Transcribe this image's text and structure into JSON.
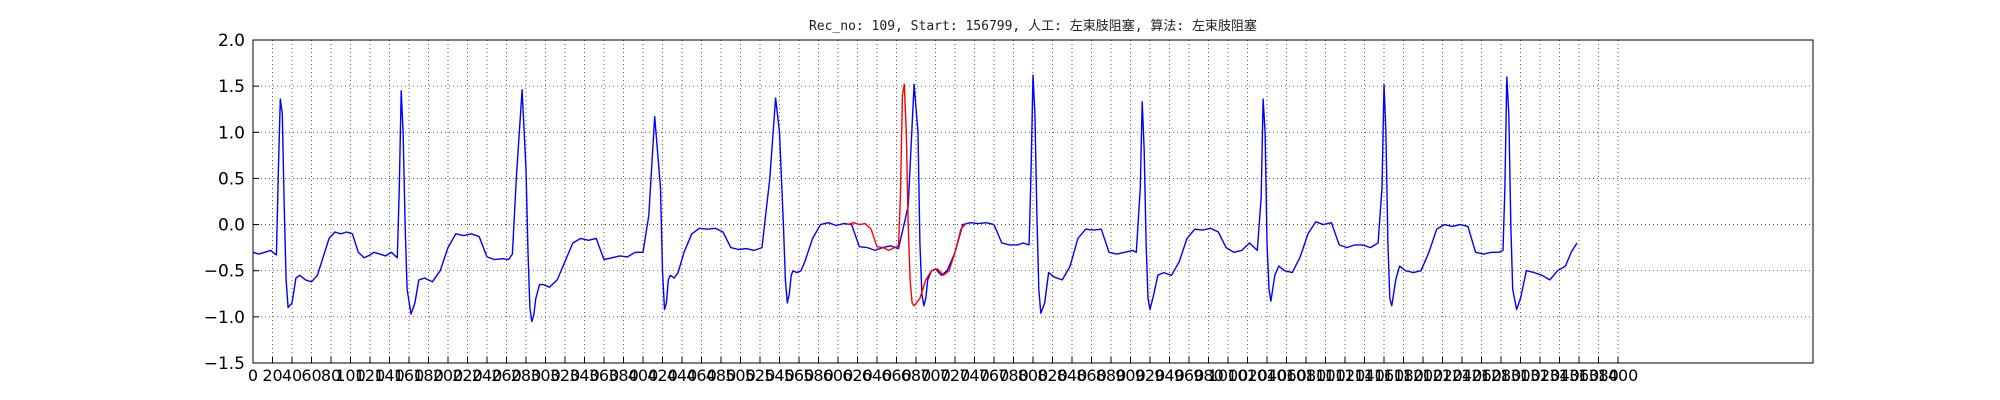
{
  "chart_data": {
    "type": "line",
    "title": "Rec_no: 109, Start: 156799, 人工: 左束肢阻塞, 算法: 左束肢阻塞",
    "xlabel": "",
    "ylabel": "",
    "xlim": [
      0,
      1600
    ],
    "ylim": [
      -1.5,
      2.0
    ],
    "grid": true,
    "yticks": [
      -1.5,
      -1.0,
      -0.5,
      0.0,
      0.5,
      1.0,
      1.5,
      2.0
    ],
    "ytick_labels": [
      "−1.5",
      "−1.0",
      "−0.5",
      "0.0",
      "0.5",
      "1.0",
      "1.5",
      "2.0"
    ],
    "xticks": [
      0,
      20,
      40,
      60,
      80,
      100,
      120,
      140,
      160,
      180,
      200,
      220,
      240,
      260,
      280,
      300,
      320,
      340,
      360,
      380,
      400,
      420,
      440,
      460,
      480,
      500,
      520,
      540,
      560,
      580,
      600,
      620,
      640,
      660,
      680,
      700,
      720,
      740,
      760,
      780,
      800,
      820,
      840,
      860,
      880,
      900,
      920,
      940,
      960,
      980,
      1000,
      1020,
      1040,
      1060,
      1080,
      1100,
      1120,
      1140,
      1160,
      1180,
      1200,
      1220,
      1240,
      1260,
      1280,
      1300,
      1320,
      1340,
      1360,
      1380,
      1400
    ],
    "series": [
      {
        "color": "#0000ff",
        "x": [
          0,
          6,
          12,
          18,
          24,
          26,
          28,
          30,
          32,
          34,
          36,
          40,
          44,
          48,
          54,
          60,
          66,
          72,
          78,
          84,
          90,
          96,
          102,
          108,
          114,
          120,
          124,
          130,
          136,
          142,
          148,
          150,
          152,
          154,
          156,
          158,
          162,
          166,
          170,
          176,
          184,
          192,
          200,
          208,
          216,
          224,
          232,
          240,
          248,
          256,
          262,
          266,
          270,
          276,
          280,
          282,
          284,
          286,
          288,
          290,
          294,
          298,
          304,
          312,
          320,
          328,
          336,
          344,
          352,
          360,
          368,
          376,
          384,
          392,
          400,
          406,
          412,
          418,
          420,
          422,
          424,
          426,
          428,
          432,
          436,
          442,
          450,
          458,
          466,
          474,
          482,
          490,
          498,
          506,
          514,
          522,
          530,
          536,
          540,
          544,
          546,
          548,
          550,
          552,
          554,
          558,
          562,
          566,
          574,
          582,
          590,
          598,
          606,
          614,
          622,
          630,
          638,
          646,
          654,
          662,
          672,
          678,
          682,
          684,
          686,
          688,
          690,
          692,
          696,
          700,
          706,
          712,
          720,
          728,
          736,
          744,
          752,
          760,
          768,
          776,
          784,
          790,
          796
        ],
        "y": [
          -0.3,
          -0.32,
          -0.3,
          -0.28,
          -0.33,
          0.6,
          1.36,
          1.2,
          0.2,
          -0.6,
          -0.9,
          -0.85,
          -0.58,
          -0.55,
          -0.6,
          -0.62,
          -0.55,
          -0.35,
          -0.15,
          -0.08,
          -0.1,
          -0.08,
          -0.1,
          -0.3,
          -0.36,
          -0.33,
          -0.3,
          -0.32,
          -0.34,
          -0.3,
          -0.36,
          0.4,
          1.45,
          1.0,
          0.0,
          -0.7,
          -0.97,
          -0.85,
          -0.6,
          -0.58,
          -0.62,
          -0.5,
          -0.25,
          -0.1,
          -0.12,
          -0.1,
          -0.13,
          -0.35,
          -0.38,
          -0.37,
          -0.38,
          -0.32,
          0.5,
          1.46,
          0.6,
          -0.3,
          -0.9,
          -1.05,
          -0.98,
          -0.8,
          -0.65,
          -0.65,
          -0.68,
          -0.6,
          -0.4,
          -0.2,
          -0.15,
          -0.17,
          -0.15,
          -0.38,
          -0.36,
          -0.34,
          -0.35,
          -0.3,
          -0.3,
          0.1,
          1.17,
          0.4,
          -0.5,
          -0.92,
          -0.85,
          -0.6,
          -0.55,
          -0.58,
          -0.52,
          -0.3,
          -0.1,
          -0.04,
          -0.05,
          -0.04,
          -0.08,
          -0.25,
          -0.27,
          -0.26,
          -0.28,
          -0.25,
          0.5,
          1.37,
          1.0,
          0.0,
          -0.6,
          -0.85,
          -0.75,
          -0.55,
          -0.5,
          -0.52,
          -0.5,
          -0.4,
          -0.15,
          0.0,
          0.02,
          -0.01,
          0.01,
          0.0,
          -0.24,
          -0.25,
          -0.28,
          -0.25,
          -0.23,
          -0.26,
          0.2,
          1.52,
          1.0,
          -0.2,
          -0.75,
          -0.88,
          -0.8,
          -0.6,
          -0.5,
          -0.48,
          -0.55,
          -0.5,
          -0.3,
          0.0,
          0.02,
          0.01,
          0.02,
          0.0,
          -0.2,
          -0.22,
          -0.22,
          -0.2,
          -0.22
        ]
      },
      {
        "color": "#0000ff",
        "x": [
          796,
          798,
          800,
          802,
          804,
          806,
          808,
          812,
          816,
          822,
          830,
          838,
          846,
          854,
          862,
          870,
          878,
          886,
          894,
          902,
          906,
          910,
          912,
          914,
          916,
          918,
          920,
          924,
          928,
          934,
          942,
          950,
          958,
          966,
          974,
          982,
          990,
          998,
          1006,
          1014,
          1022,
          1030,
          1034,
          1036,
          1038,
          1040,
          1042,
          1044,
          1048,
          1052,
          1058,
          1066,
          1074,
          1082,
          1090,
          1098,
          1106,
          1114,
          1122,
          1130,
          1138,
          1146,
          1154,
          1158,
          1160,
          1162,
          1164,
          1166,
          1168,
          1172,
          1176,
          1182,
          1190,
          1198,
          1206,
          1214,
          1222,
          1230,
          1238,
          1246,
          1254,
          1262,
          1270,
          1278,
          1282,
          1284,
          1286,
          1288,
          1290,
          1292,
          1296,
          1300,
          1306,
          1314,
          1322,
          1330,
          1338,
          1346,
          1352,
          1358
        ],
        "y": [
          -0.22,
          0.6,
          1.62,
          1.2,
          0.1,
          -0.7,
          -0.96,
          -0.85,
          -0.52,
          -0.57,
          -0.6,
          -0.45,
          -0.15,
          -0.05,
          -0.06,
          -0.05,
          -0.3,
          -0.32,
          -0.3,
          -0.28,
          -0.3,
          0.4,
          1.33,
          0.8,
          -0.2,
          -0.8,
          -0.92,
          -0.75,
          -0.55,
          -0.52,
          -0.55,
          -0.4,
          -0.15,
          -0.05,
          -0.06,
          -0.04,
          -0.08,
          -0.25,
          -0.3,
          -0.28,
          -0.2,
          -0.28,
          0.3,
          1.36,
          1.0,
          -0.2,
          -0.7,
          -0.83,
          -0.55,
          -0.45,
          -0.5,
          -0.52,
          -0.35,
          -0.1,
          0.03,
          0.0,
          0.02,
          -0.22,
          -0.25,
          -0.22,
          -0.22,
          -0.25,
          -0.2,
          0.4,
          1.52,
          1.0,
          -0.2,
          -0.8,
          -0.88,
          -0.6,
          -0.45,
          -0.5,
          -0.52,
          -0.5,
          -0.3,
          -0.05,
          0.0,
          -0.02,
          0.0,
          -0.02,
          -0.3,
          -0.32,
          -0.3,
          -0.3,
          -0.28,
          0.4,
          1.6,
          1.2,
          0.0,
          -0.7,
          -0.92,
          -0.8,
          -0.5,
          -0.52,
          -0.55,
          -0.6,
          -0.5,
          -0.45,
          -0.3,
          -0.2
        ]
      },
      {
        "color": "#ff0000",
        "x": [
          610,
          616,
          622,
          628,
          634,
          640,
          646,
          652,
          658,
          662,
          664,
          666,
          668,
          670,
          672,
          674,
          676,
          678,
          684,
          690,
          696,
          702,
          708,
          714,
          720,
          726,
          732
        ],
        "y": [
          0.0,
          0.02,
          0.0,
          0.01,
          -0.05,
          -0.24,
          -0.25,
          -0.28,
          -0.25,
          -0.23,
          0.3,
          1.4,
          1.52,
          1.0,
          0.0,
          -0.6,
          -0.85,
          -0.88,
          -0.8,
          -0.6,
          -0.5,
          -0.48,
          -0.55,
          -0.5,
          -0.3,
          -0.05,
          0.02
        ]
      }
    ]
  }
}
